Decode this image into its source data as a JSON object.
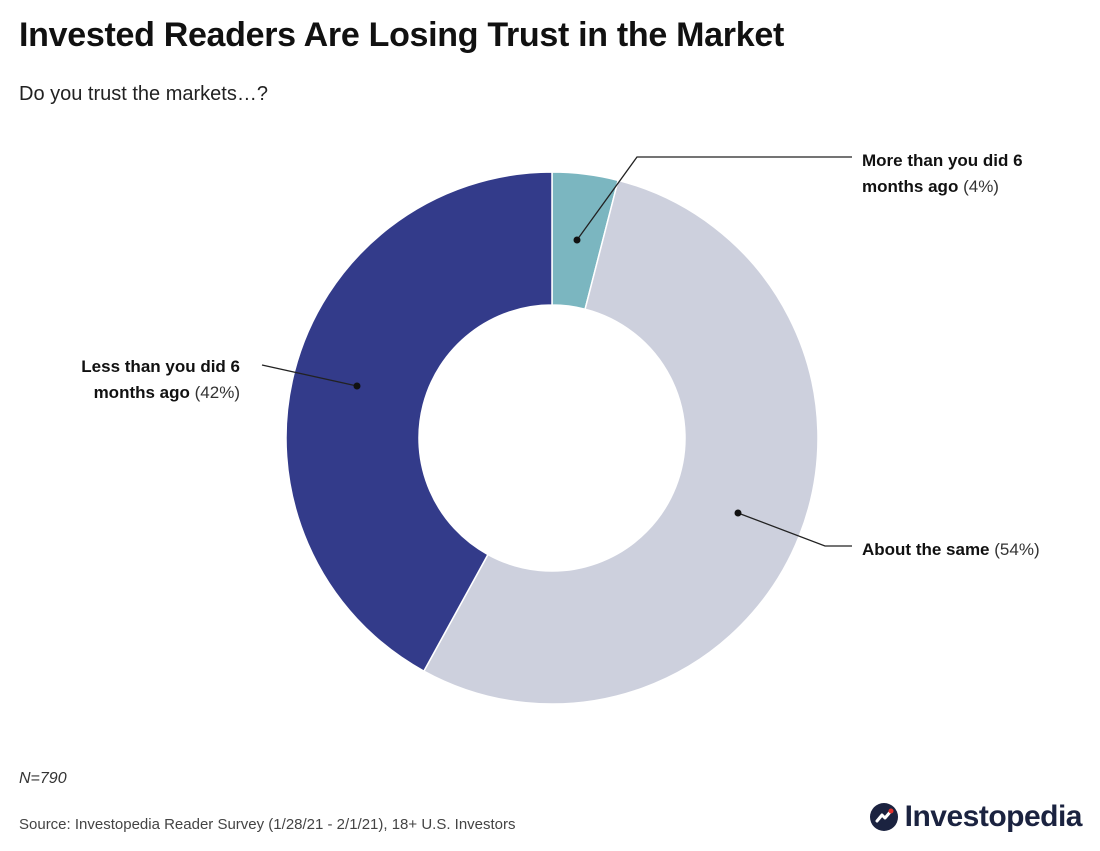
{
  "header": {
    "title": "Invested Readers Are Losing Trust in the Market",
    "subtitle": "Do you trust the markets…?"
  },
  "chart_data": {
    "type": "pie",
    "variant": "donut",
    "title": "Invested Readers Are Losing Trust in the Market",
    "subtitle": "Do you trust the markets…?",
    "categories": [
      "More than you did 6 months ago",
      "About the same",
      "Less than you did 6 months ago"
    ],
    "values": [
      4,
      54,
      42
    ],
    "unit": "%",
    "colors": [
      "#7bb6c0",
      "#cdd0dd",
      "#333b8a"
    ],
    "labels": [
      {
        "line1": "More than you did 6",
        "line2_bold": "months ago",
        "pct": "(4%)"
      },
      {
        "line1": "About the same",
        "line2_bold": "",
        "pct": "(54%)"
      },
      {
        "line1": "Less than you did 6",
        "line2_bold": "months ago",
        "pct": "(42%)"
      }
    ]
  },
  "footer": {
    "sample_size": "N=790",
    "source": "Source: Investopedia Reader Survey (1/28/21 - 2/1/21), 18+ U.S. Investors",
    "brand": "Investopedia"
  },
  "colors": {
    "brand_dark": "#1b2340",
    "brand_red": "#e0332e"
  },
  "icons": {
    "brand_logo": "investopedia-logo-icon"
  }
}
